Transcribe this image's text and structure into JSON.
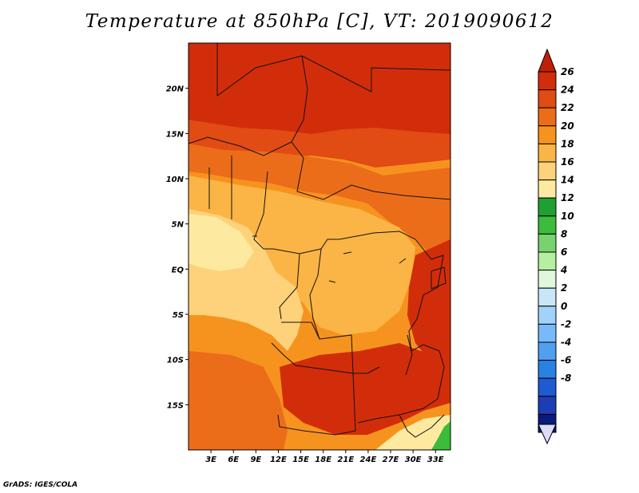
{
  "title": "Temperature at 850hPa [C], VT: 2019090612",
  "credit": "GrADS: IGES/COLA",
  "map": {
    "lon_range": [
      0,
      35
    ],
    "lat_range": [
      -20,
      25
    ],
    "lat_ticks": [
      {
        "value": 20,
        "label": "20N"
      },
      {
        "value": 15,
        "label": "15N"
      },
      {
        "value": 10,
        "label": "10N"
      },
      {
        "value": 5,
        "label": "5N"
      },
      {
        "value": 0,
        "label": "EQ"
      },
      {
        "value": -5,
        "label": "5S"
      },
      {
        "value": -10,
        "label": "10S"
      },
      {
        "value": -15,
        "label": "15S"
      }
    ],
    "lon_ticks": [
      {
        "value": 3,
        "label": "3E"
      },
      {
        "value": 6,
        "label": "6E"
      },
      {
        "value": 9,
        "label": "9E"
      },
      {
        "value": 12,
        "label": "12E"
      },
      {
        "value": 15,
        "label": "15E"
      },
      {
        "value": 18,
        "label": "18E"
      },
      {
        "value": 21,
        "label": "21E"
      },
      {
        "value": 24,
        "label": "24E"
      },
      {
        "value": 27,
        "label": "27E"
      },
      {
        "value": 30,
        "label": "30E"
      },
      {
        "value": 33,
        "label": "33E"
      }
    ]
  },
  "colorbar": {
    "levels": [
      {
        "label": "26",
        "color": "#d22d0a"
      },
      {
        "label": "24",
        "color": "#e14b14"
      },
      {
        "label": "22",
        "color": "#ec6d19"
      },
      {
        "label": "20",
        "color": "#f6931e"
      },
      {
        "label": "18",
        "color": "#fbb546"
      },
      {
        "label": "16",
        "color": "#fed27a"
      },
      {
        "label": "14",
        "color": "#fee9a0"
      },
      {
        "label": "12",
        "color": "#1fa032"
      },
      {
        "label": "10",
        "color": "#3cbb3c"
      },
      {
        "label": "8",
        "color": "#78d26e"
      },
      {
        "label": "6",
        "color": "#b4f0a0"
      },
      {
        "label": "4",
        "color": "#dff7dc"
      },
      {
        "label": "2",
        "color": "#c8e6f7"
      },
      {
        "label": "0",
        "color": "#a0d2fa"
      },
      {
        "label": "-2",
        "color": "#78b9fa"
      },
      {
        "label": "-4",
        "color": "#50a0f0"
      },
      {
        "label": "-6",
        "color": "#2882e6"
      },
      {
        "label": "-8",
        "color": "#1e5ad2"
      }
    ],
    "below_colors": [
      "#1e3cb4",
      "#0a1a7a"
    ],
    "top_arrow_color": "#be1e0a",
    "bottom_arrow_color": "#dcdcfa"
  },
  "temperature_field": [
    {
      "name": "north-band",
      "color": "#d22d0a"
    },
    {
      "name": "sahel-band",
      "color": "#e14b14"
    },
    {
      "name": "north-transition",
      "color": "#ec6d19"
    },
    {
      "name": "central-warm",
      "color": "#f6931e"
    },
    {
      "name": "cool-highlands",
      "color": "#fbb546"
    },
    {
      "name": "gulf-cool",
      "color": "#fed27a"
    },
    {
      "name": "gulf-coolest",
      "color": "#fee9a0"
    },
    {
      "name": "east-hot",
      "color": "#d22d0a"
    },
    {
      "name": "south-hot",
      "color": "#d22d0a"
    },
    {
      "name": "southeast-cool",
      "color": "#fee9a0"
    },
    {
      "name": "southeast-green",
      "color": "#3cbb3c"
    }
  ]
}
